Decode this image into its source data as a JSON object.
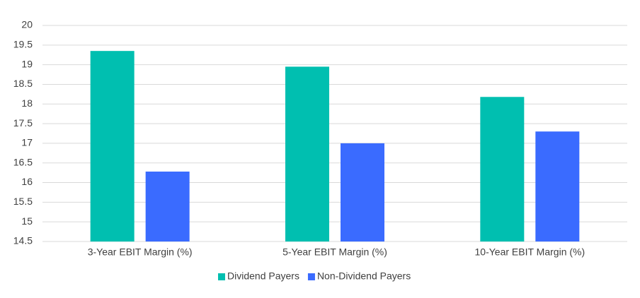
{
  "chart_data": {
    "type": "bar",
    "categories": [
      "3-Year EBIT Margin (%)",
      "5-Year EBIT Margin (%)",
      "10-Year EBIT Margin (%)"
    ],
    "series": [
      {
        "name": "Dividend Payers",
        "color": "#00bfb0",
        "values": [
          19.35,
          18.95,
          18.18
        ]
      },
      {
        "name": "Non-Dividend Payers",
        "color": "#3a6bff",
        "values": [
          16.28,
          17.0,
          17.3
        ]
      }
    ],
    "ylim": [
      14.5,
      20
    ],
    "yticks": [
      14.5,
      15,
      15.5,
      16,
      16.5,
      17,
      17.5,
      18,
      18.5,
      19,
      19.5,
      20
    ],
    "grid": true,
    "legend": "bottom"
  }
}
